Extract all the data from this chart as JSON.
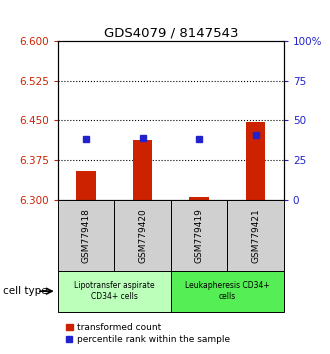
{
  "title": "GDS4079 / 8147543",
  "samples": [
    "GSM779418",
    "GSM779420",
    "GSM779419",
    "GSM779421"
  ],
  "red_bar_bottoms": [
    6.3,
    6.3,
    6.3,
    6.3
  ],
  "red_bar_tops": [
    6.355,
    6.413,
    6.305,
    6.447
  ],
  "blue_marker_values": [
    6.415,
    6.417,
    6.415,
    6.422
  ],
  "ylim_left": [
    6.3,
    6.6
  ],
  "ylim_right": [
    0,
    100
  ],
  "yticks_left": [
    6.3,
    6.375,
    6.45,
    6.525,
    6.6
  ],
  "yticks_right": [
    0,
    25,
    50,
    75,
    100
  ],
  "ytick_labels_right": [
    "0",
    "25",
    "50",
    "75",
    "100%"
  ],
  "dotted_lines": [
    6.375,
    6.45,
    6.525
  ],
  "bar_color": "#cc2200",
  "marker_color": "#2222cc",
  "group_labels": [
    "Lipotransfer aspirate\nCD34+ cells",
    "Leukapheresis CD34+\ncells"
  ],
  "group_ranges": [
    [
      0,
      2
    ],
    [
      2,
      4
    ]
  ],
  "group_colors_light": "#bbffbb",
  "group_colors_dark": "#55ee55",
  "cell_type_label": "cell type",
  "legend_items": [
    "transformed count",
    "percentile rank within the sample"
  ],
  "left_tick_color": "#cc2200",
  "right_tick_color": "#2222cc",
  "bar_width": 0.35,
  "sample_box_color": "#d0d0d0",
  "fig_width": 3.3,
  "fig_height": 3.54,
  "dpi": 100
}
